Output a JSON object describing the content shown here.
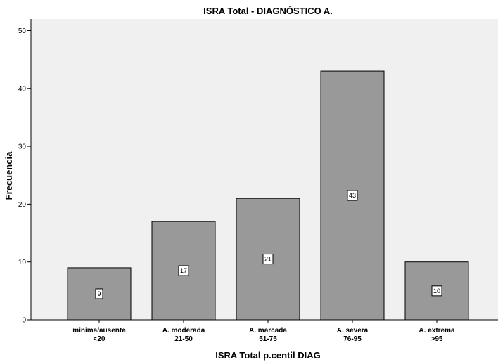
{
  "chart_data": {
    "type": "bar",
    "title": "ISRA Total - DIAGNÓSTICO A.",
    "xlabel": "ISRA Total p.centil DIAG",
    "ylabel": "Frecuencia",
    "categories": [
      [
        "minima/ausente",
        "<20"
      ],
      [
        "A. moderada",
        "21-50"
      ],
      [
        "A. marcada",
        "51-75"
      ],
      [
        "A. severa",
        "76-95"
      ],
      [
        "A. extrema",
        ">95"
      ]
    ],
    "values": [
      9,
      17,
      21,
      43,
      10
    ],
    "ylim": [
      0,
      52
    ],
    "yticks": [
      0,
      10,
      20,
      30,
      40,
      50
    ],
    "grid": false,
    "legend": "none",
    "colors": {
      "plot_background": "#f0f0f0",
      "bar_fill": "#999999",
      "bar_stroke": "#000000"
    }
  }
}
